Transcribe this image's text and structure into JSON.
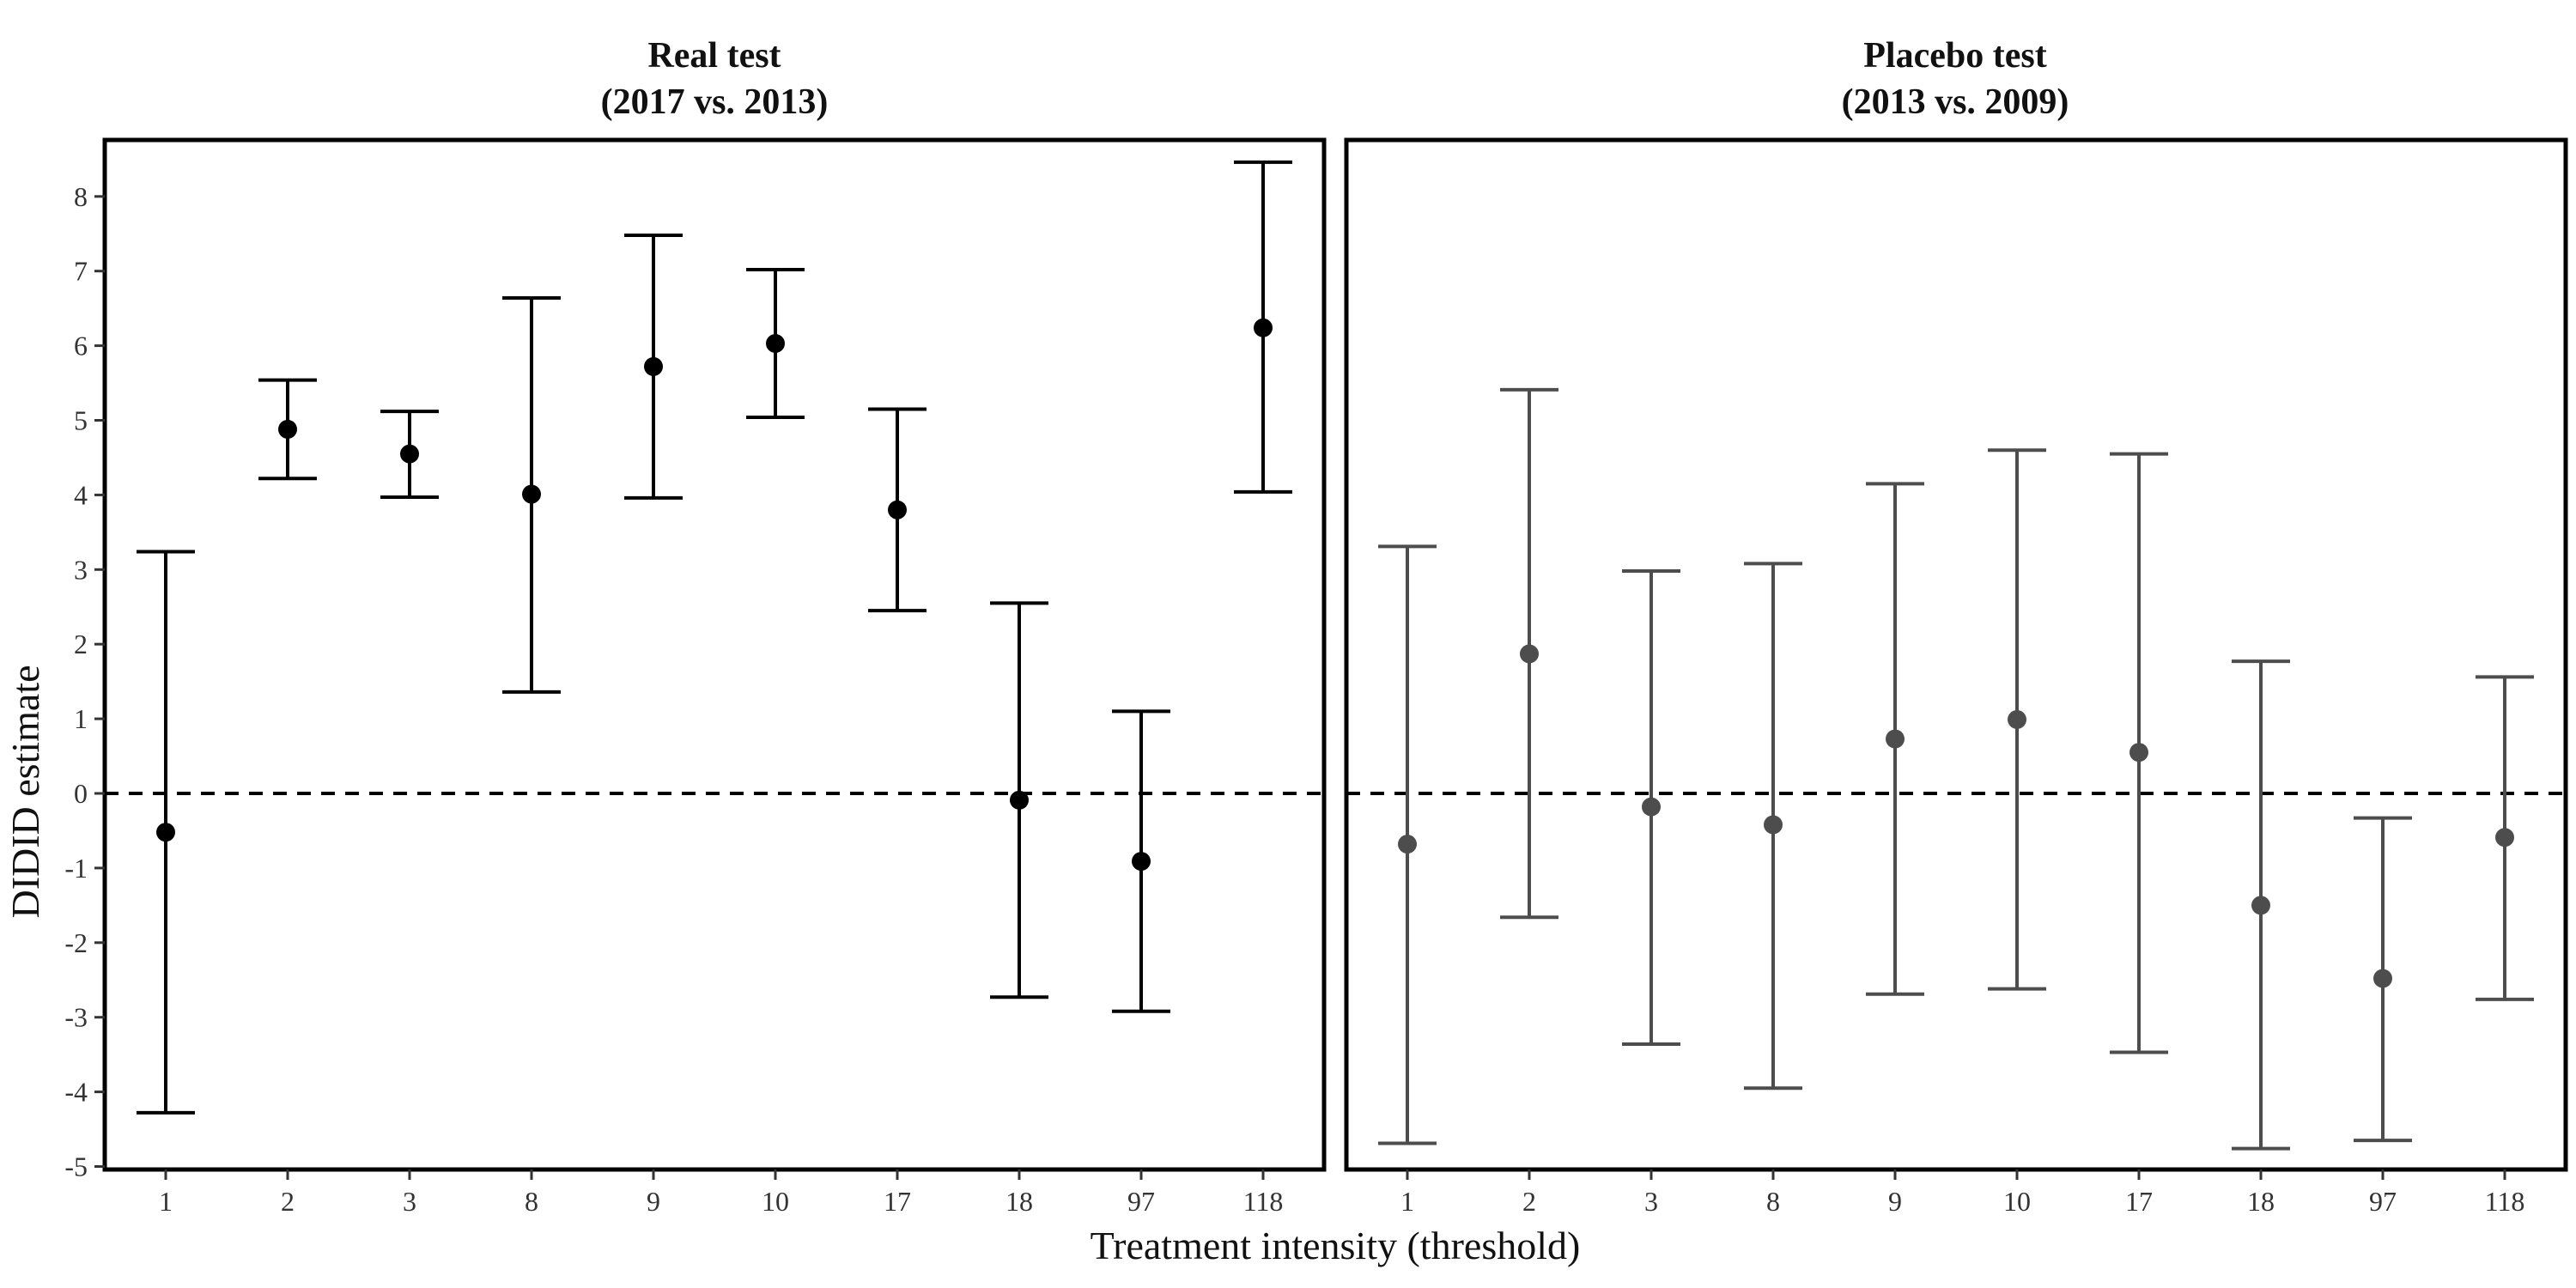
{
  "figure": {
    "ylabel": "DIDID estimate",
    "xlabel": "Treatment intensity (threshold)"
  },
  "chart_data": [
    {
      "type": "scatter",
      "style": "point estimates with error bars",
      "title": "Real test",
      "subtitle": "(2017 vs. 2013)",
      "categories": [
        "1",
        "2",
        "3",
        "8",
        "9",
        "10",
        "17",
        "18",
        "97",
        "118"
      ],
      "estimates": [
        -0.52,
        4.88,
        4.55,
        4.01,
        5.72,
        6.03,
        3.8,
        -0.09,
        -0.91,
        6.24
      ],
      "lower": [
        -4.28,
        4.22,
        3.97,
        1.36,
        3.96,
        5.04,
        2.45,
        -2.73,
        -2.92,
        4.04
      ],
      "upper": [
        3.24,
        5.54,
        5.12,
        6.64,
        7.48,
        7.02,
        5.15,
        2.55,
        1.1,
        8.46
      ],
      "ylim": [
        -5,
        8
      ],
      "yticks": [
        -5,
        -4,
        -3,
        -2,
        -1,
        0,
        1,
        2,
        3,
        4,
        5,
        6,
        7,
        8
      ],
      "reference_line": 0,
      "color": "#000000"
    },
    {
      "type": "scatter",
      "style": "point estimates with error bars",
      "title": "Placebo test",
      "subtitle": "(2013 vs. 2009)",
      "categories": [
        "1",
        "2",
        "3",
        "8",
        "9",
        "10",
        "17",
        "18",
        "97",
        "118"
      ],
      "estimates": [
        -0.68,
        1.87,
        -0.18,
        -0.42,
        0.73,
        0.99,
        0.55,
        -1.5,
        -2.48,
        -0.59
      ],
      "lower": [
        -4.69,
        -1.66,
        -3.36,
        -3.95,
        -2.69,
        -2.62,
        -3.47,
        -4.76,
        -4.65,
        -2.76
      ],
      "upper": [
        3.31,
        5.41,
        2.98,
        3.08,
        4.15,
        4.6,
        4.55,
        1.77,
        -0.33,
        1.56
      ],
      "ylim": [
        -5,
        8
      ],
      "yticks": [
        -5,
        -4,
        -3,
        -2,
        -1,
        0,
        1,
        2,
        3,
        4,
        5,
        6,
        7,
        8
      ],
      "reference_line": 0,
      "color": "#4d4d4d"
    }
  ]
}
